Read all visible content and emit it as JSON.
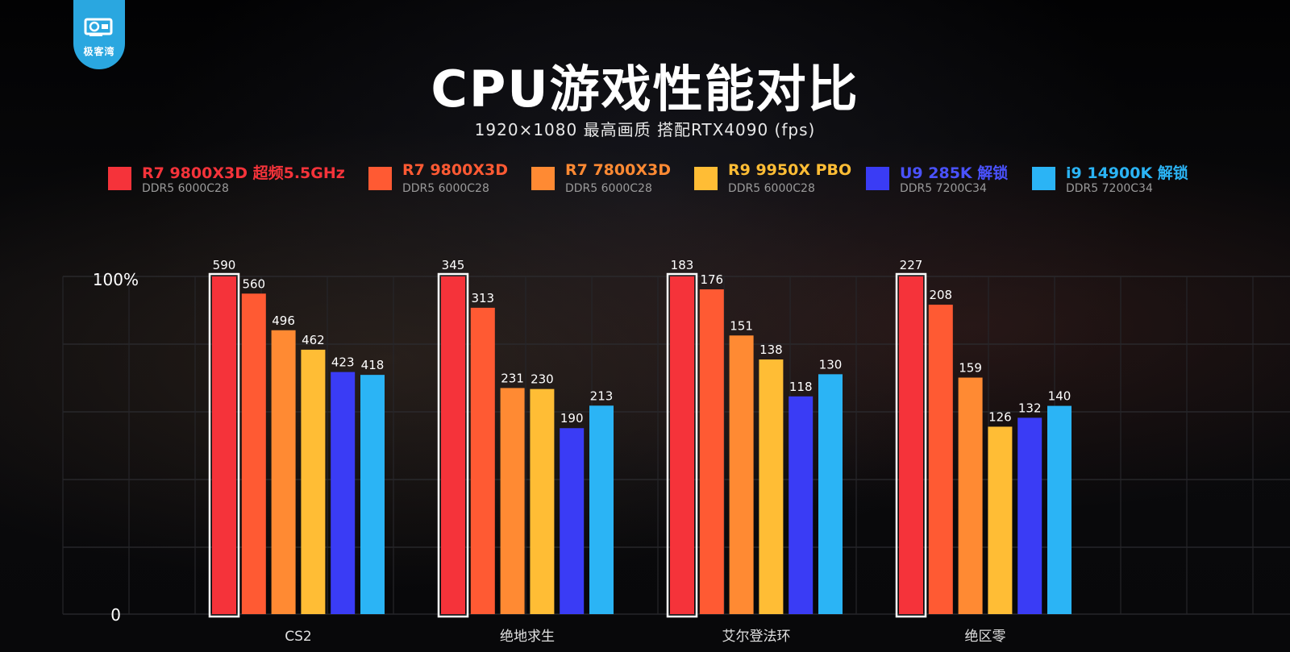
{
  "logo": {
    "text": "极客湾"
  },
  "header": {
    "title": "CPU游戏性能对比",
    "subtitle": "1920×1080  最高画质  搭配RTX4090 (fps)"
  },
  "legend": [
    {
      "name": "R7 9800X3D 超频5.5GHz",
      "mem": "DDR5 6000C28",
      "color": "#f5333a"
    },
    {
      "name": "R7 9800X3D",
      "mem": "DDR5 6000C28",
      "color": "#ff5a33"
    },
    {
      "name": "R7 7800X3D",
      "mem": "DDR5 6000C28",
      "color": "#ff8a33"
    },
    {
      "name": "R9 9950X PBO",
      "mem": "DDR5 6000C28",
      "color": "#ffbd35"
    },
    {
      "name": "U9 285K 解锁",
      "mem": "DDR5 7200C34",
      "color": "#3a3cf5"
    },
    {
      "name": "i9 14900K 解锁",
      "mem": "DDR5 7200C34",
      "color": "#2bb4f5"
    }
  ],
  "chart_data": {
    "type": "bar",
    "title": "CPU游戏性能对比",
    "subtitle": "1920×1080  最高画质  搭配RTX4090 (fps)",
    "y_tick_labels": [
      "100%",
      "0"
    ],
    "categories": [
      "CS2",
      "绝地求生",
      "艾尔登法环",
      "绝区零"
    ],
    "series": [
      {
        "name": "R7 9800X3D 超频5.5GHz",
        "values": [
          590,
          345,
          183,
          227
        ]
      },
      {
        "name": "R7 9800X3D",
        "values": [
          560,
          313,
          176,
          208
        ]
      },
      {
        "name": "R7 7800X3D",
        "values": [
          496,
          231,
          151,
          159
        ]
      },
      {
        "name": "R9 9950X PBO",
        "values": [
          462,
          230,
          138,
          126
        ]
      },
      {
        "name": "U9 285K 解锁",
        "values": [
          423,
          190,
          118,
          132
        ]
      },
      {
        "name": "i9 14900K 解锁",
        "values": [
          418,
          213,
          130,
          140
        ]
      }
    ],
    "normalization": "per-category, relative to the first series (100%)",
    "highlighted_series": "R7 9800X3D 超频5.5GHz",
    "grid": true,
    "legend_position": "top"
  }
}
